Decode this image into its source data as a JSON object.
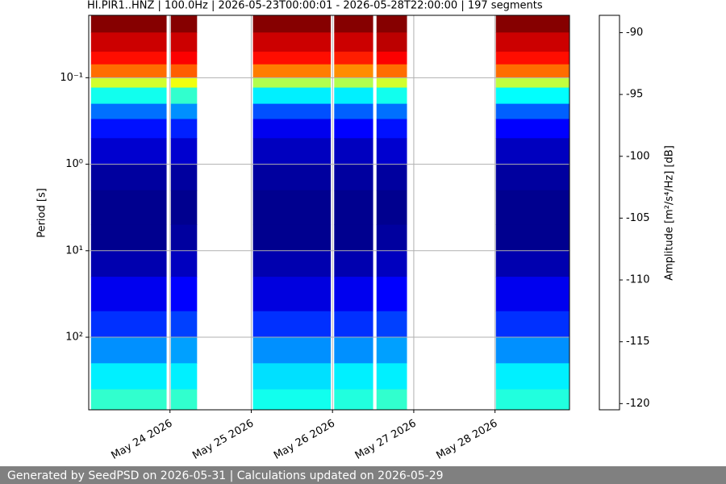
{
  "chart_data": {
    "type": "spectrogram",
    "title": "HI.PIR1..HNZ | 100.0Hz | 2026-05-23T00:00:01 - 2026-05-28T22:00:00 | 197 segments",
    "y_label": "Period [s]",
    "colorbar_label": "Amplitude [m²/s⁴/Hz] [dB]",
    "xlim": [
      "2026-05-23T00:00",
      "2026-05-28T22:00"
    ],
    "xticks": [
      {
        "value": "2026-05-24T00:00",
        "label": "May 24 2026"
      },
      {
        "value": "2026-05-25T00:00",
        "label": "May 25 2026"
      },
      {
        "value": "2026-05-26T00:00",
        "label": "May 26 2026"
      },
      {
        "value": "2026-05-27T00:00",
        "label": "May 27 2026"
      },
      {
        "value": "2026-05-28T00:00",
        "label": "May 28 2026"
      }
    ],
    "ylim": [
      0.019,
      690
    ],
    "y_log": true,
    "y_inverted": true,
    "yticks": [
      {
        "value": 0.1,
        "label": "10⁻¹"
      },
      {
        "value": 1,
        "label": "10⁰"
      },
      {
        "value": 10,
        "label": "10¹"
      },
      {
        "value": 100,
        "label": "10²"
      }
    ],
    "grid": true,
    "colormap": "jet",
    "clim": [
      -120.5,
      -88.6
    ],
    "cticks": [
      -90,
      -95,
      -100,
      -105,
      -110,
      -115,
      -120
    ],
    "period_edges": [
      0.019,
      0.03,
      0.05,
      0.07,
      0.1,
      0.13,
      0.2,
      0.3,
      0.5,
      1,
      2,
      5,
      10,
      20,
      50,
      100,
      200,
      400,
      690
    ],
    "segments": [
      {
        "start": "2026-05-23T00:40",
        "end": "2026-05-23T23:00",
        "values": [
          -88.8,
          -91,
          -93,
          -96,
          -102,
          -108,
          -113,
          -116,
          -118,
          -119.5,
          -120,
          -120,
          -119,
          -117,
          -115,
          -112,
          -109,
          -107
        ]
      },
      {
        "start": "2026-05-24T00:15",
        "end": "2026-05-24T08:00",
        "values": [
          -88.8,
          -91,
          -92.5,
          -95.5,
          -101,
          -107,
          -112,
          -115.5,
          -118,
          -119.5,
          -120,
          -119.5,
          -118.5,
          -116.5,
          -114.5,
          -111.5,
          -109,
          -107
        ]
      },
      {
        "start": "2026-05-25T00:30",
        "end": "2026-05-25T23:30",
        "values": [
          -88.8,
          -91,
          -93,
          -96.5,
          -103,
          -109,
          -114,
          -117,
          -118.5,
          -119.5,
          -120,
          -120,
          -119,
          -117.5,
          -115,
          -112,
          -109.5,
          -108
        ]
      },
      {
        "start": "2026-05-26T00:30",
        "end": "2026-05-26T12:00",
        "values": [
          -88.8,
          -91,
          -93.5,
          -97,
          -103,
          -109,
          -113.5,
          -116.5,
          -118.5,
          -119.5,
          -120,
          -120,
          -119,
          -117,
          -115,
          -112,
          -109,
          -107.5
        ]
      },
      {
        "start": "2026-05-26T13:00",
        "end": "2026-05-26T22:00",
        "values": [
          -88.8,
          -90.5,
          -92.5,
          -96,
          -102,
          -108,
          -113,
          -116,
          -118,
          -119.5,
          -120,
          -119.5,
          -118.5,
          -116.5,
          -114.5,
          -111.5,
          -109,
          -107
        ]
      },
      {
        "start": "2026-05-28T00:15",
        "end": "2026-05-28T22:00",
        "values": [
          -88.8,
          -91,
          -93,
          -96,
          -102.5,
          -108.5,
          -113.5,
          -116.5,
          -118.5,
          -119.5,
          -120,
          -120,
          -119,
          -117,
          -115,
          -112,
          -109,
          -107.5
        ]
      }
    ]
  },
  "footer": "Generated by SeedPSD on 2026-05-31 | Calculations updated on 2026-05-29"
}
